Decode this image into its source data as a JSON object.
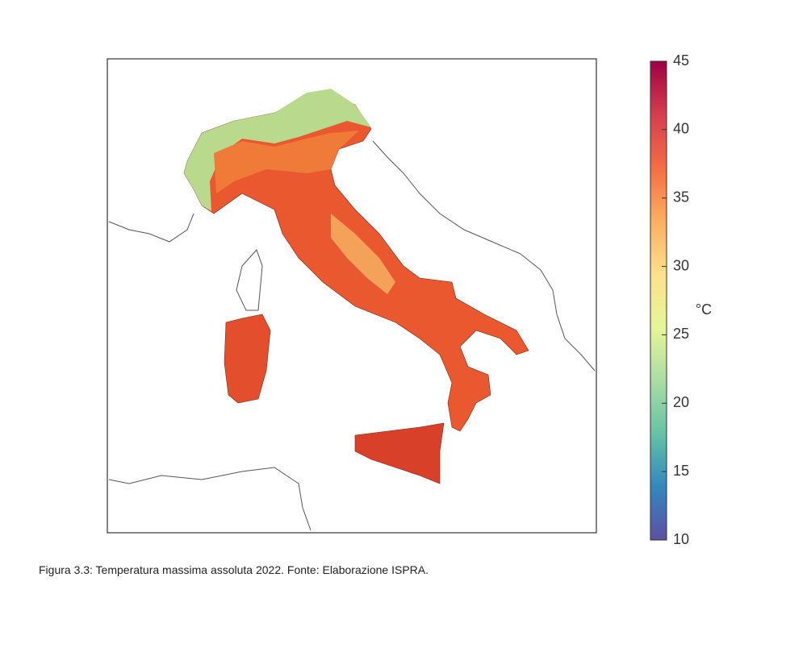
{
  "map": {
    "colorbar": {
      "lim": [
        10,
        45
      ],
      "ticks": [
        10,
        15,
        20,
        25,
        30,
        35,
        40,
        45
      ],
      "unit": "°C",
      "colors": [
        "#5e4fa2",
        "#3288bd",
        "#66c2a5",
        "#abdda4",
        "#e6f598",
        "#fee08b",
        "#fdae61",
        "#f46d43",
        "#d53e4f",
        "#9e0142"
      ]
    }
  },
  "caption": "Figura 3.3: Temperatura massima assoluta 2022. Fonte: Elaborazione ISPRA."
}
